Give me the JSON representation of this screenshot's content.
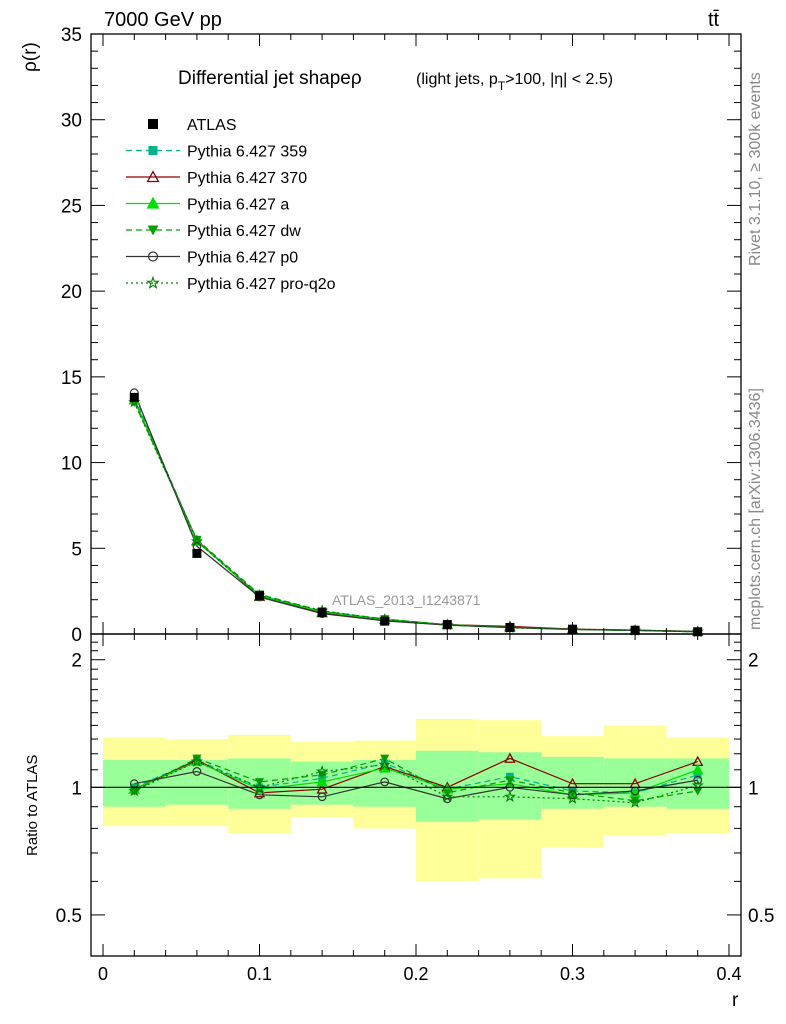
{
  "header": {
    "left": "7000 GeV pp",
    "right": "tt̄"
  },
  "side": {
    "rivet": "Rivet 3.1.10, ≥ 300k events",
    "mcplots": "mcplots.cern.ch [arXiv:1306.3436]"
  },
  "chart_data": {
    "type": "line",
    "title": "Differential jet shapeρ",
    "subtitle_parts": {
      "a": "(light jets, p",
      "sub": "T",
      "b": ">100, |η| < 2.5)"
    },
    "xlabel": "r",
    "ylabel": "ρ(r)",
    "ratio_ylabel": "Ratio to ATLAS",
    "analysis_label": "ATLAS_2013_I1243871",
    "xlim": [
      0,
      0.4
    ],
    "ylim": [
      0,
      35
    ],
    "ratio_ylim": [
      0.4,
      2.3
    ],
    "x_ticks": [
      "0",
      "0.1",
      "0.2",
      "0.3",
      "0.4"
    ],
    "y_ticks": [
      "0",
      "5",
      "10",
      "15",
      "20",
      "25",
      "30",
      "35"
    ],
    "ratio_ticks": [
      "0.5",
      "1",
      "2"
    ],
    "x": [
      0.02,
      0.06,
      0.1,
      0.14,
      0.18,
      0.22,
      0.26,
      0.3,
      0.34,
      0.38
    ],
    "bins": [
      [
        0.0,
        0.04
      ],
      [
        0.04,
        0.08
      ],
      [
        0.08,
        0.12
      ],
      [
        0.12,
        0.16
      ],
      [
        0.16,
        0.2
      ],
      [
        0.2,
        0.24
      ],
      [
        0.24,
        0.28
      ],
      [
        0.28,
        0.32
      ],
      [
        0.32,
        0.36
      ],
      [
        0.36,
        0.4
      ]
    ],
    "data": {
      "name": "ATLAS",
      "values": [
        13.8,
        4.7,
        2.25,
        1.25,
        0.75,
        0.55,
        0.38,
        0.28,
        0.22,
        0.13
      ],
      "band_inner": [
        [
          0.9,
          1.16
        ],
        [
          0.91,
          1.16
        ],
        [
          0.89,
          1.17
        ],
        [
          0.91,
          1.15
        ],
        [
          0.9,
          1.16
        ],
        [
          0.83,
          1.22
        ],
        [
          0.84,
          1.21
        ],
        [
          0.89,
          1.18
        ],
        [
          0.9,
          1.17
        ],
        [
          0.89,
          1.17
        ]
      ],
      "band_outer": [
        [
          0.81,
          1.31
        ],
        [
          0.81,
          1.3
        ],
        [
          0.78,
          1.33
        ],
        [
          0.85,
          1.28
        ],
        [
          0.8,
          1.29
        ],
        [
          0.6,
          1.45
        ],
        [
          0.61,
          1.44
        ],
        [
          0.72,
          1.32
        ],
        [
          0.77,
          1.4
        ],
        [
          0.78,
          1.31
        ]
      ]
    },
    "series": [
      {
        "name": "Pythia 6.427 359",
        "color": "#00b38a",
        "dash": "6,4",
        "marker": "square-filled",
        "ratio": [
          1.0,
          1.16,
          1.0,
          1.05,
          1.14,
          0.99,
          1.06,
          0.98,
          0.97,
          1.07
        ]
      },
      {
        "name": "Pythia 6.427 370",
        "color": "#8b0000",
        "dash": "",
        "marker": "triangle-open",
        "ratio": [
          0.99,
          1.16,
          0.97,
          0.99,
          1.12,
          1.0,
          1.17,
          1.02,
          1.02,
          1.15
        ]
      },
      {
        "name": "Pythia 6.427 a",
        "color": "#00dd00",
        "dash": "",
        "marker": "triangle-filled",
        "ratio": [
          0.99,
          1.15,
          0.99,
          1.03,
          1.11,
          0.99,
          1.02,
          0.96,
          0.97,
          1.1
        ]
      },
      {
        "name": "Pythia 6.427 dw",
        "color": "#00a000",
        "dash": "6,4",
        "marker": "triangle-down-filled",
        "ratio": [
          0.98,
          1.17,
          1.03,
          1.07,
          1.17,
          0.97,
          1.04,
          0.97,
          0.93,
          0.98
        ]
      },
      {
        "name": "Pythia 6.427 p0",
        "color": "#333333",
        "dash": "",
        "marker": "circle-open",
        "ratio": [
          1.02,
          1.09,
          0.96,
          0.95,
          1.03,
          0.94,
          1.0,
          0.96,
          0.98,
          1.04
        ]
      },
      {
        "name": "Pythia 6.427 pro-q2o",
        "color": "#008000",
        "dash": "2,3",
        "marker": "star-open",
        "ratio": [
          0.98,
          1.15,
          1.0,
          1.09,
          1.13,
          0.95,
          0.95,
          0.94,
          0.92,
          1.01
        ]
      }
    ]
  }
}
